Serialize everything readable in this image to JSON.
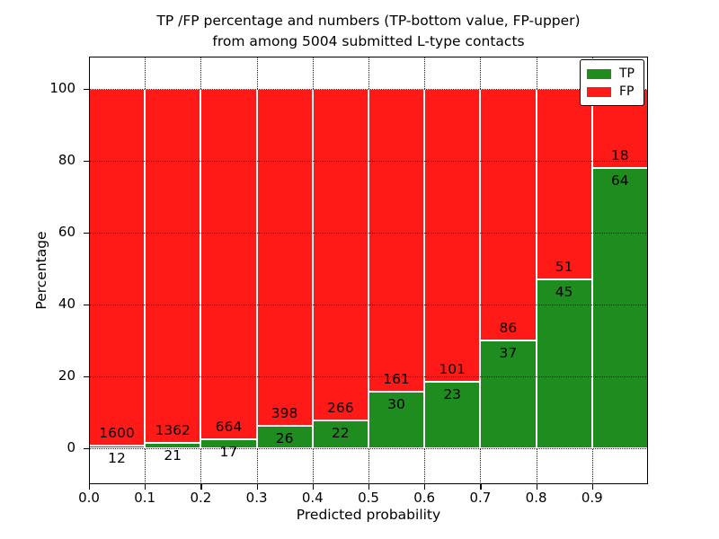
{
  "title": {
    "line1": "TP /FP percentage and numbers (TP-bottom value, FP-upper)",
    "line2": "from among 5004 submitted L-type contacts"
  },
  "axes": {
    "xlabel": "Predicted probability",
    "ylabel": "Percentage",
    "x_tick_labels": [
      "0.0",
      "0.1",
      "0.2",
      "0.3",
      "0.4",
      "0.5",
      "0.6",
      "0.7",
      "0.8",
      "0.9"
    ],
    "y_tick_labels": [
      "0",
      "20",
      "40",
      "60",
      "80",
      "100"
    ],
    "y_tick_values": [
      0,
      20,
      40,
      60,
      80,
      100
    ],
    "xlim": [
      0.0,
      1.0
    ],
    "ylim": [
      -10,
      109
    ],
    "grid": "dotted"
  },
  "legend": {
    "position": "upper right",
    "items": [
      {
        "label": "TP",
        "color": "#1e8c1e"
      },
      {
        "label": "FP",
        "color": "#ff1a17"
      }
    ]
  },
  "chart_data": {
    "type": "bar",
    "stacked": true,
    "title": "TP /FP percentage and numbers (TP-bottom value, FP-upper) from among 5004 submitted L-type contacts",
    "xlabel": "Predicted probability",
    "ylabel": "Percentage",
    "total_submitted_contacts": 5004,
    "bin_edges": [
      0.0,
      0.1,
      0.2,
      0.3,
      0.4,
      0.5,
      0.6,
      0.7,
      0.8,
      0.9,
      1.0
    ],
    "categories": [
      "0.0-0.1",
      "0.1-0.2",
      "0.2-0.3",
      "0.3-0.4",
      "0.4-0.5",
      "0.5-0.6",
      "0.6-0.7",
      "0.7-0.8",
      "0.8-0.9",
      "0.9-1.0"
    ],
    "series": [
      {
        "name": "TP",
        "color": "#1e8c1e",
        "counts": [
          12,
          21,
          17,
          26,
          22,
          30,
          23,
          37,
          45,
          64
        ]
      },
      {
        "name": "FP",
        "color": "#ff1a17",
        "counts": [
          1600,
          1362,
          664,
          398,
          266,
          161,
          101,
          86,
          51,
          18
        ]
      }
    ],
    "tp_percent": [
      0.74,
      1.52,
      2.5,
      6.13,
      7.64,
      15.71,
      18.55,
      30.08,
      46.88,
      78.05
    ],
    "fp_percent": [
      99.26,
      98.48,
      97.5,
      93.87,
      92.36,
      84.29,
      81.45,
      69.92,
      53.12,
      21.95
    ],
    "bar_edge_color": "#ffffff",
    "ylim": [
      -10,
      109
    ],
    "grid": true,
    "legend_position": "upper right"
  }
}
